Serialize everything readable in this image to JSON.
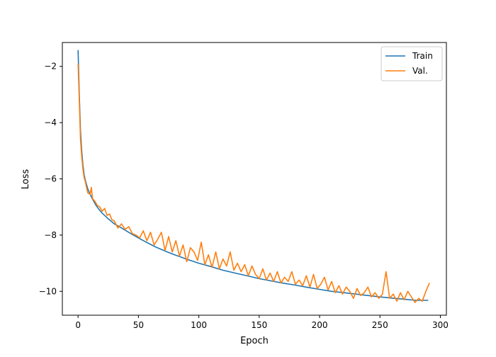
{
  "chart_data": {
    "type": "line",
    "title": "",
    "xlabel": "Epoch",
    "ylabel": "Loss",
    "xlim": [
      -13,
      305
    ],
    "ylim": [
      -10.85,
      -1.15
    ],
    "xticks": [
      0,
      50,
      100,
      150,
      200,
      250,
      300
    ],
    "yticks": [
      -10,
      -8,
      -6,
      -4,
      -2
    ],
    "legend_position": "top-right",
    "grid": false,
    "series": [
      {
        "name": "Train",
        "color": "#1f77b4",
        "x": [
          0,
          1,
          2,
          3,
          4,
          5,
          6,
          8,
          10,
          12,
          15,
          18,
          20,
          25,
          30,
          35,
          40,
          45,
          50,
          55,
          60,
          65,
          70,
          75,
          80,
          85,
          90,
          95,
          100,
          110,
          120,
          130,
          140,
          150,
          160,
          170,
          180,
          190,
          200,
          210,
          220,
          230,
          240,
          250,
          260,
          270,
          280,
          290
        ],
        "y": [
          -1.42,
          -3.0,
          -4.3,
          -5.0,
          -5.5,
          -5.85,
          -6.05,
          -6.35,
          -6.55,
          -6.72,
          -6.95,
          -7.12,
          -7.22,
          -7.42,
          -7.6,
          -7.72,
          -7.85,
          -7.98,
          -8.1,
          -8.22,
          -8.33,
          -8.44,
          -8.53,
          -8.62,
          -8.7,
          -8.78,
          -8.86,
          -8.93,
          -9.0,
          -9.12,
          -9.25,
          -9.35,
          -9.45,
          -9.55,
          -9.63,
          -9.71,
          -9.78,
          -9.86,
          -9.93,
          -10.0,
          -10.05,
          -10.1,
          -10.15,
          -10.2,
          -10.24,
          -10.28,
          -10.32,
          -10.32
        ]
      },
      {
        "name": "Val.",
        "color": "#ff7f0e",
        "x": [
          0,
          1,
          2,
          3,
          4,
          5,
          6,
          8,
          10,
          11,
          12,
          14,
          16,
          18,
          20,
          22,
          24,
          26,
          28,
          30,
          33,
          36,
          39,
          42,
          45,
          48,
          51,
          54,
          57,
          60,
          63,
          66,
          69,
          72,
          75,
          78,
          81,
          84,
          87,
          90,
          93,
          96,
          99,
          102,
          105,
          108,
          111,
          114,
          117,
          120,
          123,
          126,
          129,
          132,
          135,
          138,
          141,
          144,
          147,
          150,
          153,
          156,
          159,
          162,
          165,
          168,
          171,
          174,
          177,
          180,
          183,
          186,
          189,
          192,
          195,
          198,
          201,
          204,
          207,
          210,
          213,
          216,
          219,
          222,
          225,
          228,
          231,
          234,
          237,
          240,
          243,
          246,
          249,
          252,
          255,
          258,
          261,
          264,
          267,
          270,
          273,
          276,
          279,
          282,
          285,
          288,
          291
        ],
        "y": [
          -1.9,
          -3.2,
          -4.6,
          -5.2,
          -5.65,
          -5.95,
          -6.1,
          -6.5,
          -6.55,
          -6.3,
          -6.7,
          -6.8,
          -6.95,
          -7.0,
          -7.15,
          -7.05,
          -7.3,
          -7.25,
          -7.45,
          -7.5,
          -7.75,
          -7.6,
          -7.8,
          -7.7,
          -7.95,
          -8.0,
          -8.1,
          -7.85,
          -8.2,
          -7.9,
          -8.35,
          -8.15,
          -7.9,
          -8.55,
          -8.05,
          -8.6,
          -8.2,
          -8.75,
          -8.35,
          -8.95,
          -8.45,
          -8.6,
          -8.9,
          -8.25,
          -9.05,
          -8.7,
          -9.15,
          -8.6,
          -9.2,
          -8.85,
          -9.1,
          -8.6,
          -9.25,
          -9.0,
          -9.3,
          -9.05,
          -9.45,
          -9.1,
          -9.4,
          -9.55,
          -9.2,
          -9.6,
          -9.35,
          -9.65,
          -9.3,
          -9.7,
          -9.5,
          -9.65,
          -9.3,
          -9.75,
          -9.6,
          -9.8,
          -9.45,
          -9.85,
          -9.4,
          -9.9,
          -9.75,
          -9.5,
          -9.95,
          -9.65,
          -10.05,
          -9.8,
          -10.1,
          -9.85,
          -10.0,
          -10.25,
          -9.9,
          -10.15,
          -10.05,
          -9.85,
          -10.2,
          -10.05,
          -10.25,
          -10.1,
          -9.3,
          -10.25,
          -10.1,
          -10.35,
          -10.05,
          -10.3,
          -10.0,
          -10.2,
          -10.4,
          -10.25,
          -10.35,
          -10.0,
          -9.7
        ]
      }
    ]
  }
}
